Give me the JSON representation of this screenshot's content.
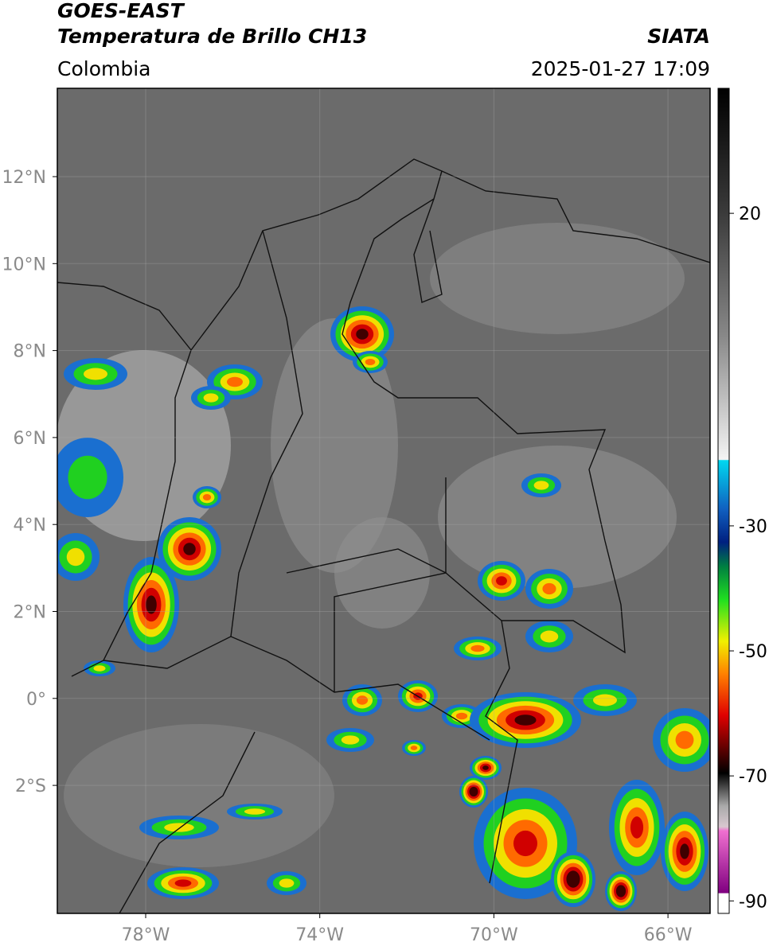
{
  "header": {
    "title": "GOES-EAST",
    "subtitle": "Temperatura de Brillo CH13",
    "source": "SIATA",
    "region": "Colombia",
    "datetime": "2025-01-27 17:09"
  },
  "map": {
    "lat_ticks": [
      "12°N",
      "10°N",
      "8°N",
      "6°N",
      "4°N",
      "2°N",
      "0°",
      "2°S"
    ],
    "lon_ticks": [
      "78°W",
      "74°W",
      "70°W",
      "66°W"
    ]
  },
  "colorbar": {
    "lim": [
      -92,
      40
    ],
    "ticks": [
      20,
      -30,
      -50,
      -70,
      -90
    ]
  }
}
